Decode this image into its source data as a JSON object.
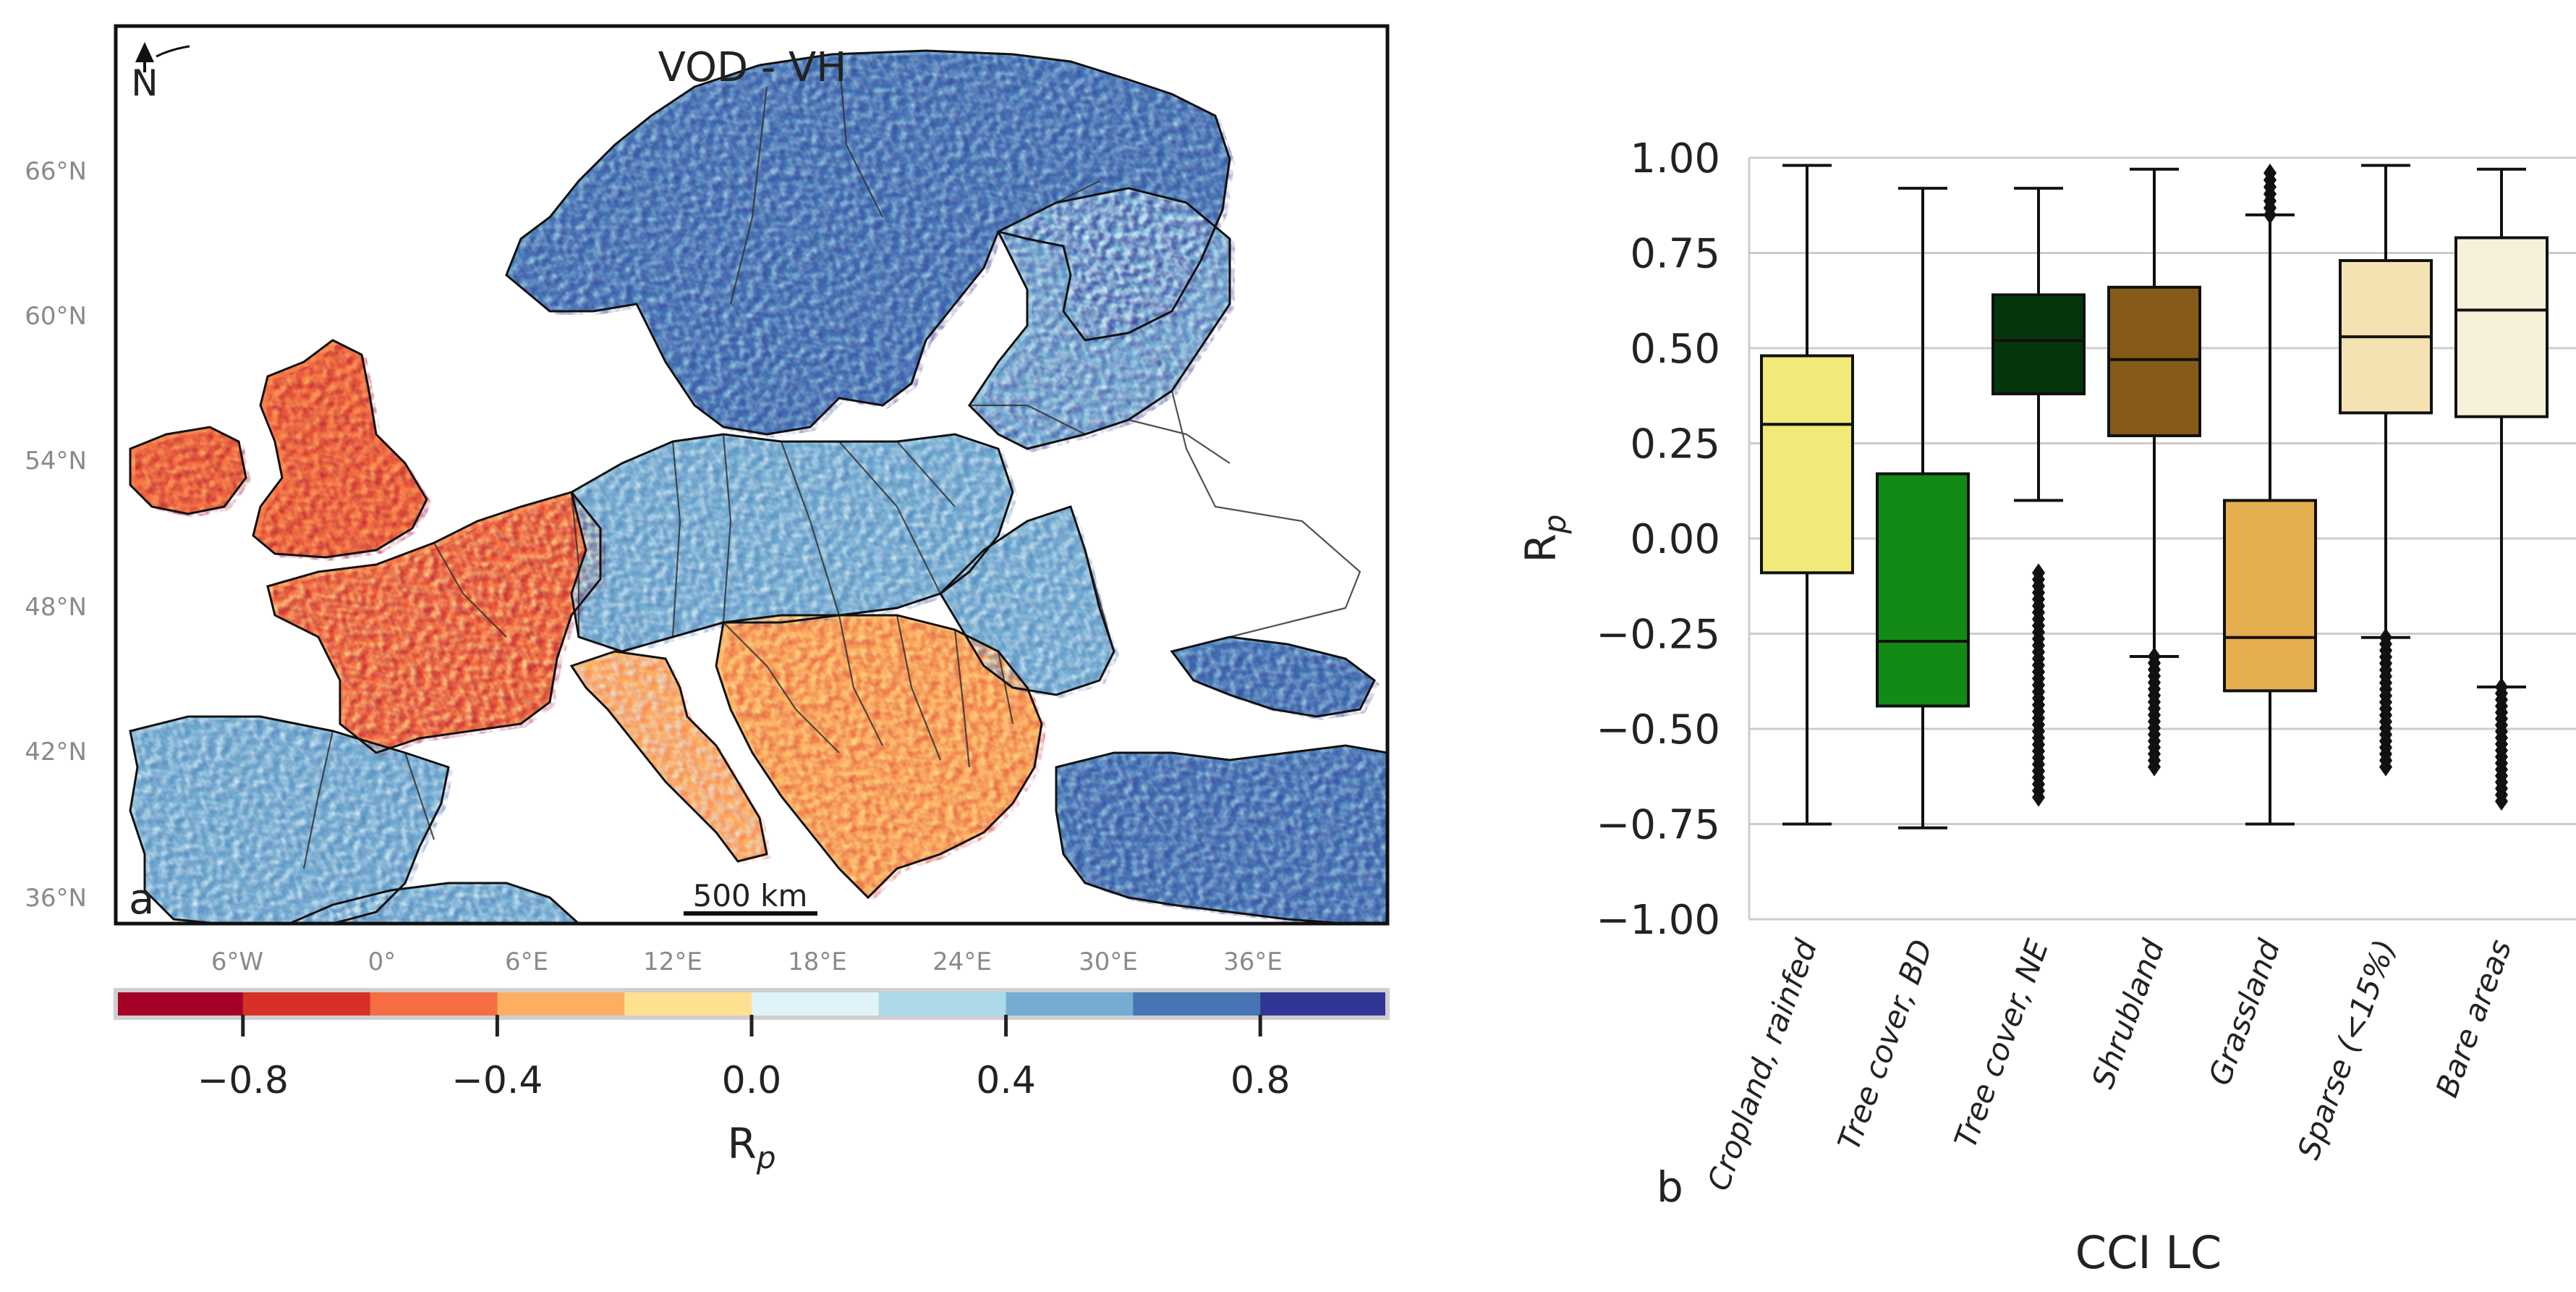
{
  "chart_data": [
    {
      "type": "heatmap",
      "panel_label": "a",
      "title": "VOD - VH",
      "north_arrow_label": "N",
      "scale_bar_label": "500 km",
      "lat_ticks": [
        "66°N",
        "60°N",
        "54°N",
        "48°N",
        "42°N",
        "36°N"
      ],
      "lon_ticks": [
        "6°W",
        "0°",
        "6°E",
        "12°E",
        "18°E",
        "24°E",
        "30°E",
        "36°E"
      ],
      "colorbar": {
        "label": "R",
        "label_sub": "p",
        "range": [
          -1.0,
          1.0
        ],
        "ticks": [
          "−0.8",
          "−0.4",
          "0.0",
          "0.4",
          "0.8"
        ],
        "tick_values": [
          -0.8,
          -0.4,
          0.0,
          0.4,
          0.8
        ],
        "colors": [
          "#a50026",
          "#d73027",
          "#f46d43",
          "#fdae61",
          "#fee090",
          "#e0f3f8",
          "#abd9e9",
          "#74add1",
          "#4575b4",
          "#313695"
        ]
      },
      "regions": [
        {
          "name": "Scandinavia",
          "value": 0.6
        },
        {
          "name": "Ireland / UK",
          "value": -0.6
        },
        {
          "name": "France",
          "value": -0.5
        },
        {
          "name": "Iberia",
          "value": 0.4
        },
        {
          "name": "Central Europe",
          "value": 0.4
        },
        {
          "name": "Balkans / Hungary",
          "value": -0.4
        },
        {
          "name": "Italy",
          "value": -0.3
        },
        {
          "name": "Baltics / W. Russia",
          "value": 0.5
        },
        {
          "name": "Turkey",
          "value": 0.7
        }
      ]
    },
    {
      "type": "box",
      "panel_label": "b",
      "xlabel": "CCI LC",
      "ylabel": "R",
      "ylabel_sub": "p",
      "ylim": [
        -1.0,
        1.0
      ],
      "yticks": [
        {
          "value": 1.0,
          "label": "1.00"
        },
        {
          "value": 0.75,
          "label": "0.75"
        },
        {
          "value": 0.5,
          "label": "0.50"
        },
        {
          "value": 0.25,
          "label": "0.25"
        },
        {
          "value": 0.0,
          "label": "0.00"
        },
        {
          "value": -0.25,
          "label": "−0.25"
        },
        {
          "value": -0.5,
          "label": "−0.50"
        },
        {
          "value": -0.75,
          "label": "−0.75"
        },
        {
          "value": -1.0,
          "label": "−1.00"
        }
      ],
      "categories": [
        "Cropland, rainfed",
        "Tree cover, BD",
        "Tree cover, NE",
        "Shrubland",
        "Grassland",
        "Sparse (<15%)",
        "Bare areas"
      ],
      "boxes": [
        {
          "name": "Cropland, rainfed",
          "color": "#f0ea78",
          "whisker_low": -0.75,
          "q1": -0.09,
          "median": 0.3,
          "q3": 0.48,
          "whisker_high": 0.98,
          "outliers_low": [],
          "outliers_high": []
        },
        {
          "name": "Tree cover, BD",
          "color": "#128a15",
          "whisker_low": -0.76,
          "q1": -0.44,
          "median": -0.27,
          "q3": 0.17,
          "whisker_high": 0.92,
          "outliers_low": [],
          "outliers_high": []
        },
        {
          "name": "Tree cover, NE",
          "color": "#04360c",
          "whisker_low": 0.1,
          "q1": 0.38,
          "median": 0.52,
          "q3": 0.64,
          "whisker_high": 0.92,
          "outliers_low": [
            -0.68,
            -0.09
          ],
          "outliers_high": []
        },
        {
          "name": "Shrubland",
          "color": "#855b17",
          "whisker_low": -0.31,
          "q1": 0.27,
          "median": 0.47,
          "q3": 0.66,
          "whisker_high": 0.97,
          "outliers_low": [
            -0.6,
            -0.31
          ],
          "outliers_high": []
        },
        {
          "name": "Grassland",
          "color": "#e5ae4f",
          "whisker_low": -0.75,
          "q1": -0.4,
          "median": -0.26,
          "q3": 0.1,
          "whisker_high": 0.85,
          "outliers_low": [],
          "outliers_high": [
            0.85,
            0.96
          ]
        },
        {
          "name": "Sparse (<15%)",
          "color": "#f4e2b2",
          "whisker_low": -0.26,
          "q1": 0.33,
          "median": 0.53,
          "q3": 0.73,
          "whisker_high": 0.98,
          "outliers_low": [
            -0.6,
            -0.26
          ],
          "outliers_high": []
        },
        {
          "name": "Bare areas",
          "color": "#f8f1da",
          "whisker_low": -0.39,
          "q1": 0.32,
          "median": 0.6,
          "q3": 0.79,
          "whisker_high": 0.97,
          "outliers_low": [
            -0.69,
            -0.39
          ],
          "outliers_high": []
        }
      ]
    }
  ]
}
